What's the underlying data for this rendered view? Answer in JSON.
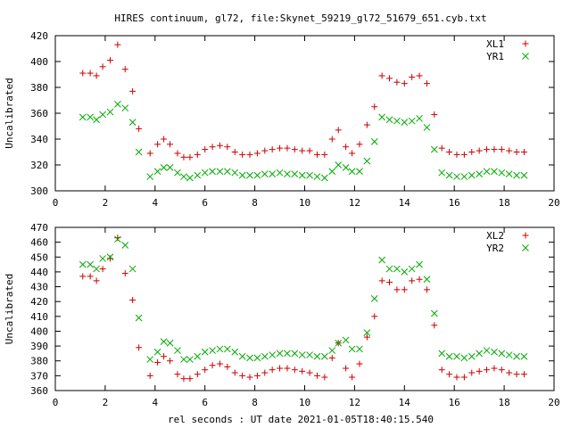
{
  "title": "HIRES continuum, gl72, file:Skynet_59219_gl72_51679_651.cyb.txt",
  "xlabel": "rel seconds : UT date 2021-01-05T18:40:15.540",
  "chart_data": [
    {
      "type": "scatter",
      "ylabel": "Uncalibrated",
      "xlim": [
        0,
        20
      ],
      "ylim": [
        300,
        420
      ],
      "xticks": [
        0,
        2,
        4,
        6,
        8,
        10,
        12,
        14,
        16,
        18,
        20
      ],
      "yticks": [
        300,
        320,
        340,
        360,
        380,
        400,
        420
      ],
      "legend_position": "top-right",
      "series": [
        {
          "name": "XL1",
          "marker": "+",
          "color": "#cc0000",
          "points": [
            [
              1.1,
              391
            ],
            [
              1.4,
              391
            ],
            [
              1.65,
              389
            ],
            [
              1.9,
              396
            ],
            [
              2.2,
              401
            ],
            [
              2.5,
              413
            ],
            [
              2.8,
              394
            ],
            [
              3.1,
              377
            ],
            [
              3.35,
              348
            ],
            [
              3.8,
              329
            ],
            [
              4.1,
              336
            ],
            [
              4.35,
              340
            ],
            [
              4.6,
              336
            ],
            [
              4.9,
              329
            ],
            [
              5.15,
              326
            ],
            [
              5.4,
              326
            ],
            [
              5.7,
              328
            ],
            [
              6.0,
              332
            ],
            [
              6.3,
              334
            ],
            [
              6.6,
              335
            ],
            [
              6.9,
              334
            ],
            [
              7.2,
              330
            ],
            [
              7.5,
              328
            ],
            [
              7.8,
              328
            ],
            [
              8.1,
              329
            ],
            [
              8.4,
              331
            ],
            [
              8.7,
              332
            ],
            [
              9.0,
              333
            ],
            [
              9.3,
              333
            ],
            [
              9.6,
              332
            ],
            [
              9.9,
              331
            ],
            [
              10.2,
              331
            ],
            [
              10.5,
              328
            ],
            [
              10.8,
              328
            ],
            [
              11.1,
              340
            ],
            [
              11.35,
              347
            ],
            [
              11.65,
              334
            ],
            [
              11.9,
              329
            ],
            [
              12.2,
              336
            ],
            [
              12.5,
              351
            ],
            [
              12.8,
              365
            ],
            [
              13.1,
              389
            ],
            [
              13.4,
              387
            ],
            [
              13.7,
              384
            ],
            [
              14.0,
              383
            ],
            [
              14.3,
              388
            ],
            [
              14.6,
              389
            ],
            [
              14.9,
              383
            ],
            [
              15.2,
              359
            ],
            [
              15.5,
              333
            ],
            [
              15.8,
              330
            ],
            [
              16.1,
              328
            ],
            [
              16.4,
              328
            ],
            [
              16.7,
              330
            ],
            [
              17.0,
              331
            ],
            [
              17.3,
              332
            ],
            [
              17.6,
              332
            ],
            [
              17.9,
              332
            ],
            [
              18.2,
              331
            ],
            [
              18.5,
              330
            ],
            [
              18.8,
              330
            ]
          ]
        },
        {
          "name": "YR1",
          "marker": "x",
          "color": "#00aa00",
          "points": [
            [
              1.1,
              357
            ],
            [
              1.4,
              357
            ],
            [
              1.65,
              355
            ],
            [
              1.9,
              359
            ],
            [
              2.2,
              361
            ],
            [
              2.5,
              367
            ],
            [
              2.8,
              364
            ],
            [
              3.1,
              353
            ],
            [
              3.35,
              330
            ],
            [
              3.8,
              311
            ],
            [
              4.1,
              315
            ],
            [
              4.35,
              318
            ],
            [
              4.6,
              318
            ],
            [
              4.9,
              314
            ],
            [
              5.15,
              311
            ],
            [
              5.4,
              310
            ],
            [
              5.7,
              312
            ],
            [
              6.0,
              314
            ],
            [
              6.3,
              315
            ],
            [
              6.6,
              315
            ],
            [
              6.9,
              315
            ],
            [
              7.2,
              314
            ],
            [
              7.5,
              312
            ],
            [
              7.8,
              312
            ],
            [
              8.1,
              312
            ],
            [
              8.4,
              313
            ],
            [
              8.7,
              313
            ],
            [
              9.0,
              314
            ],
            [
              9.3,
              313
            ],
            [
              9.6,
              313
            ],
            [
              9.9,
              312
            ],
            [
              10.2,
              312
            ],
            [
              10.5,
              311
            ],
            [
              10.8,
              310
            ],
            [
              11.1,
              315
            ],
            [
              11.35,
              320
            ],
            [
              11.65,
              318
            ],
            [
              11.9,
              315
            ],
            [
              12.2,
              315
            ],
            [
              12.5,
              323
            ],
            [
              12.8,
              338
            ],
            [
              13.1,
              357
            ],
            [
              13.4,
              355
            ],
            [
              13.7,
              354
            ],
            [
              14.0,
              353
            ],
            [
              14.3,
              354
            ],
            [
              14.6,
              356
            ],
            [
              14.9,
              349
            ],
            [
              15.2,
              332
            ],
            [
              15.5,
              314
            ],
            [
              15.8,
              312
            ],
            [
              16.1,
              311
            ],
            [
              16.4,
              311
            ],
            [
              16.7,
              312
            ],
            [
              17.0,
              313
            ],
            [
              17.3,
              315
            ],
            [
              17.6,
              315
            ],
            [
              17.9,
              314
            ],
            [
              18.2,
              313
            ],
            [
              18.5,
              312
            ],
            [
              18.8,
              312
            ]
          ]
        }
      ]
    },
    {
      "type": "scatter",
      "ylabel": "Uncalibrated",
      "xlim": [
        0,
        20
      ],
      "ylim": [
        360,
        470
      ],
      "xticks": [
        0,
        2,
        4,
        6,
        8,
        10,
        12,
        14,
        16,
        18,
        20
      ],
      "yticks": [
        360,
        370,
        380,
        390,
        400,
        410,
        420,
        430,
        440,
        450,
        460,
        470
      ],
      "legend_position": "top-right",
      "series": [
        {
          "name": "XL2",
          "marker": "+",
          "color": "#cc0000",
          "points": [
            [
              1.1,
              437
            ],
            [
              1.4,
              437
            ],
            [
              1.65,
              434
            ],
            [
              1.9,
              442
            ],
            [
              2.2,
              449
            ],
            [
              2.5,
              463
            ],
            [
              2.8,
              439
            ],
            [
              3.1,
              421
            ],
            [
              3.35,
              389
            ],
            [
              3.8,
              370
            ],
            [
              4.1,
              379
            ],
            [
              4.35,
              383
            ],
            [
              4.6,
              380
            ],
            [
              4.9,
              371
            ],
            [
              5.15,
              368
            ],
            [
              5.4,
              368
            ],
            [
              5.7,
              371
            ],
            [
              6.0,
              374
            ],
            [
              6.3,
              377
            ],
            [
              6.6,
              378
            ],
            [
              6.9,
              376
            ],
            [
              7.2,
              372
            ],
            [
              7.5,
              370
            ],
            [
              7.8,
              369
            ],
            [
              8.1,
              370
            ],
            [
              8.4,
              372
            ],
            [
              8.7,
              374
            ],
            [
              9.0,
              375
            ],
            [
              9.3,
              375
            ],
            [
              9.6,
              374
            ],
            [
              9.9,
              373
            ],
            [
              10.2,
              372
            ],
            [
              10.5,
              370
            ],
            [
              10.8,
              369
            ],
            [
              11.1,
              382
            ],
            [
              11.35,
              392
            ],
            [
              11.65,
              375
            ],
            [
              11.9,
              369
            ],
            [
              12.2,
              378
            ],
            [
              12.5,
              396
            ],
            [
              12.8,
              410
            ],
            [
              13.1,
              434
            ],
            [
              13.4,
              433
            ],
            [
              13.7,
              428
            ],
            [
              14.0,
              428
            ],
            [
              14.3,
              434
            ],
            [
              14.6,
              435
            ],
            [
              14.9,
              428
            ],
            [
              15.2,
              404
            ],
            [
              15.5,
              374
            ],
            [
              15.8,
              371
            ],
            [
              16.1,
              369
            ],
            [
              16.4,
              369
            ],
            [
              16.7,
              372
            ],
            [
              17.0,
              373
            ],
            [
              17.3,
              374
            ],
            [
              17.6,
              375
            ],
            [
              17.9,
              374
            ],
            [
              18.2,
              372
            ],
            [
              18.5,
              371
            ],
            [
              18.8,
              371
            ]
          ]
        },
        {
          "name": "YR2",
          "marker": "x",
          "color": "#00aa00",
          "points": [
            [
              1.1,
              445
            ],
            [
              1.4,
              445
            ],
            [
              1.65,
              442
            ],
            [
              1.9,
              449
            ],
            [
              2.2,
              450
            ],
            [
              2.5,
              462
            ],
            [
              2.8,
              458
            ],
            [
              3.1,
              442
            ],
            [
              3.35,
              409
            ],
            [
              3.8,
              381
            ],
            [
              4.1,
              386
            ],
            [
              4.35,
              393
            ],
            [
              4.6,
              392
            ],
            [
              4.9,
              387
            ],
            [
              5.15,
              381
            ],
            [
              5.4,
              381
            ],
            [
              5.7,
              383
            ],
            [
              6.0,
              386
            ],
            [
              6.3,
              387
            ],
            [
              6.6,
              388
            ],
            [
              6.9,
              388
            ],
            [
              7.2,
              386
            ],
            [
              7.5,
              383
            ],
            [
              7.8,
              382
            ],
            [
              8.1,
              382
            ],
            [
              8.4,
              383
            ],
            [
              8.7,
              384
            ],
            [
              9.0,
              385
            ],
            [
              9.3,
              385
            ],
            [
              9.6,
              385
            ],
            [
              9.9,
              384
            ],
            [
              10.2,
              384
            ],
            [
              10.5,
              383
            ],
            [
              10.8,
              383
            ],
            [
              11.1,
              387
            ],
            [
              11.35,
              392
            ],
            [
              11.65,
              394
            ],
            [
              11.9,
              388
            ],
            [
              12.2,
              388
            ],
            [
              12.5,
              399
            ],
            [
              12.8,
              422
            ],
            [
              13.1,
              448
            ],
            [
              13.4,
              442
            ],
            [
              13.7,
              442
            ],
            [
              14.0,
              440
            ],
            [
              14.3,
              442
            ],
            [
              14.6,
              445
            ],
            [
              14.9,
              435
            ],
            [
              15.2,
              412
            ],
            [
              15.5,
              385
            ],
            [
              15.8,
              383
            ],
            [
              16.1,
              383
            ],
            [
              16.4,
              382
            ],
            [
              16.7,
              383
            ],
            [
              17.0,
              385
            ],
            [
              17.3,
              387
            ],
            [
              17.6,
              386
            ],
            [
              17.9,
              385
            ],
            [
              18.2,
              384
            ],
            [
              18.5,
              383
            ],
            [
              18.8,
              383
            ]
          ]
        }
      ]
    }
  ]
}
